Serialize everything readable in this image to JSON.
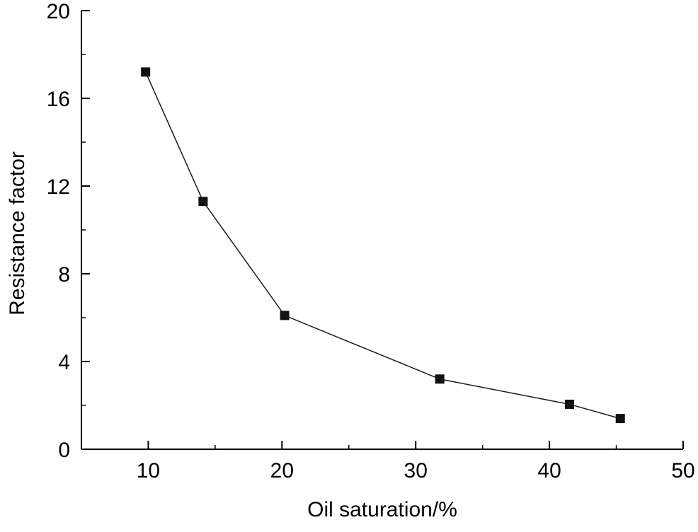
{
  "page": {
    "background": "#ffffff",
    "foreground": "#000000"
  },
  "chart_data": {
    "type": "line",
    "title": "",
    "xlabel": "Oil saturation/%",
    "ylabel": "Resistance factor",
    "xlim": [
      5,
      50
    ],
    "ylim": [
      0,
      20
    ],
    "x_ticks": [
      10,
      20,
      30,
      40,
      50
    ],
    "y_ticks": [
      0,
      4,
      8,
      12,
      16,
      20
    ],
    "x_minor_step": 5,
    "y_minor_step": 2,
    "grid": false,
    "legend": "none",
    "marker": "square",
    "line_color": "#1a1a1a",
    "marker_color": "#111111",
    "series": [
      {
        "name": "Resistance factor",
        "x": [
          9.8,
          14.1,
          20.2,
          31.8,
          41.5,
          45.3
        ],
        "y": [
          17.2,
          11.3,
          6.1,
          3.2,
          2.05,
          1.4
        ]
      }
    ]
  }
}
